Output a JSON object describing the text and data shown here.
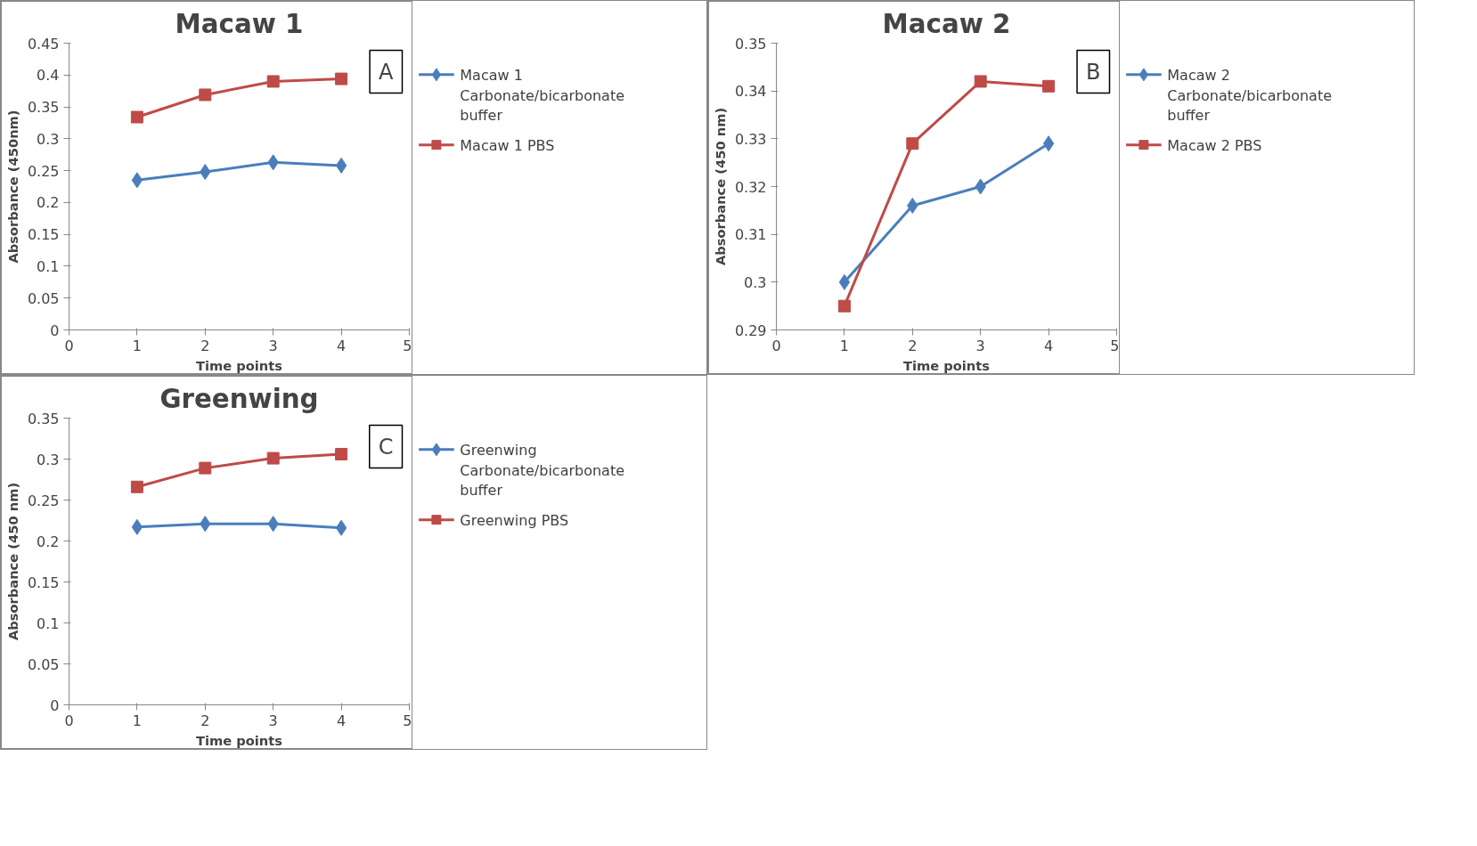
{
  "chart_data": [
    {
      "type": "line",
      "title": "Macaw 1",
      "xlabel": "Time points",
      "ylabel": "Absorbance (450nm)",
      "annotations": [
        "A"
      ],
      "x": [
        1,
        2,
        3,
        4
      ],
      "xlim": [
        0,
        5
      ],
      "xticks": [
        0,
        1,
        2,
        3,
        4,
        5
      ],
      "ylim": [
        0,
        0.45
      ],
      "yticks": [
        {
          "value": 0,
          "label": "0"
        },
        {
          "value": 0.05,
          "label": "0.05"
        },
        {
          "value": 0.1,
          "label": "0.1"
        },
        {
          "value": 0.15,
          "label": "0.15"
        },
        {
          "value": 0.2,
          "label": "0.2"
        },
        {
          "value": 0.25,
          "label": "0.25"
        },
        {
          "value": 0.3,
          "label": "0.3"
        },
        {
          "value": 0.35,
          "label": "0.35"
        },
        {
          "value": 0.4,
          "label": "0.4"
        },
        {
          "value": 0.45,
          "label": "0.45"
        }
      ],
      "grid": false,
      "legend": "right",
      "line_style": "solid",
      "series": [
        {
          "name": "Macaw 1 Carbonate/bicarbonate buffer",
          "color": "#4a7ebb",
          "marker": "diamond",
          "values": [
            0.235,
            0.248,
            0.263,
            0.258
          ]
        },
        {
          "name": "Macaw 1 PBS",
          "color": "#be4b48",
          "marker": "square",
          "values": [
            0.334,
            0.369,
            0.39,
            0.394
          ]
        }
      ]
    },
    {
      "type": "line",
      "title": "Macaw 2",
      "xlabel": "Time points",
      "ylabel": "Absorbance (450 nm)",
      "annotations": [
        "B"
      ],
      "x": [
        1,
        2,
        3,
        4
      ],
      "xlim": [
        0,
        5
      ],
      "xticks": [
        0,
        1,
        2,
        3,
        4,
        5
      ],
      "ylim": [
        0.29,
        0.35
      ],
      "yticks": [
        {
          "value": 0.29,
          "label": "0.29"
        },
        {
          "value": 0.3,
          "label": "0.3"
        },
        {
          "value": 0.31,
          "label": "0.31"
        },
        {
          "value": 0.32,
          "label": "0.32"
        },
        {
          "value": 0.33,
          "label": "0.33"
        },
        {
          "value": 0.34,
          "label": "0.34"
        },
        {
          "value": 0.35,
          "label": "0.35"
        }
      ],
      "grid": false,
      "legend": "right",
      "line_style": "solid",
      "series": [
        {
          "name": "Macaw 2 Carbonate/bicarbonate buffer",
          "color": "#4a7ebb",
          "marker": "diamond",
          "values": [
            0.3,
            0.316,
            0.32,
            0.329
          ]
        },
        {
          "name": "Macaw 2 PBS",
          "color": "#be4b48",
          "marker": "square",
          "values": [
            0.295,
            0.329,
            0.342,
            0.341
          ]
        }
      ]
    },
    {
      "type": "line",
      "title": "Greenwing",
      "xlabel": "Time points",
      "ylabel": "Absorbance (450 nm)",
      "annotations": [
        "C"
      ],
      "x": [
        1,
        2,
        3,
        4
      ],
      "xlim": [
        0,
        5
      ],
      "xticks": [
        0,
        1,
        2,
        3,
        4,
        5
      ],
      "ylim": [
        0,
        0.35
      ],
      "yticks": [
        {
          "value": 0,
          "label": "0"
        },
        {
          "value": 0.05,
          "label": "0.05"
        },
        {
          "value": 0.1,
          "label": "0.1"
        },
        {
          "value": 0.15,
          "label": "0.15"
        },
        {
          "value": 0.2,
          "label": "0.2"
        },
        {
          "value": 0.25,
          "label": "0.25"
        },
        {
          "value": 0.3,
          "label": "0.3"
        },
        {
          "value": 0.35,
          "label": "0.35"
        }
      ],
      "grid": false,
      "legend": "right",
      "line_style": "solid",
      "series": [
        {
          "name": "Greenwing Carbonate/bicarbonate buffer",
          "color": "#4a7ebb",
          "marker": "diamond",
          "values": [
            0.217,
            0.221,
            0.221,
            0.216
          ]
        },
        {
          "name": "Greenwing PBS",
          "color": "#be4b48",
          "marker": "square",
          "values": [
            0.266,
            0.289,
            0.301,
            0.306
          ]
        }
      ]
    }
  ]
}
